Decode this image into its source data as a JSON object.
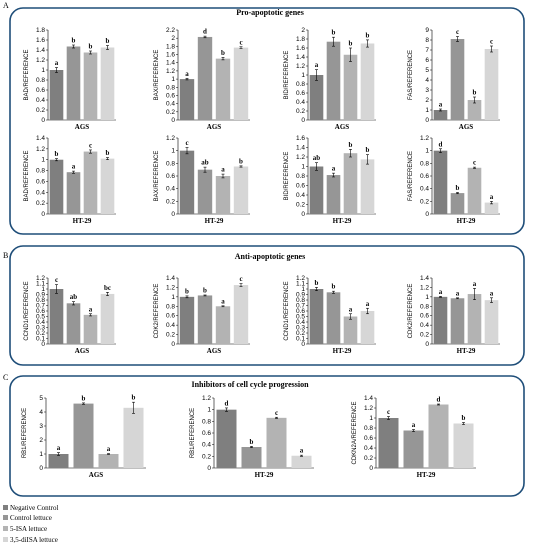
{
  "panels": [
    {
      "letter": "A",
      "title": "Pro-apoptotic genes"
    },
    {
      "letter": "B",
      "title": "Anti-apoptotic genes"
    },
    {
      "letter": "C",
      "title": "Inhibitors of cell cycle progression"
    }
  ],
  "legend": [
    {
      "label": "Negative Control",
      "color": "#7f7f7f"
    },
    {
      "label": "Control lettuce",
      "color": "#969696"
    },
    {
      "label": "5-ISA lettuce",
      "color": "#b3b3b3"
    },
    {
      "label": "3,5-diISA lettuce",
      "color": "#d6d6d6"
    }
  ],
  "colors": [
    "#7f7f7f",
    "#969696",
    "#b3b3b3",
    "#d6d6d6"
  ],
  "chart_data": [
    {
      "type": "bar",
      "panel": "A",
      "xlabel": "AGS",
      "ylabel": "BAD/REFERENCE",
      "ylim": [
        0,
        1.8
      ],
      "ticks": [
        "0",
        "0.2",
        "0.4",
        "0.6",
        "0.8",
        "1",
        "1.2",
        "1.4",
        "1.6",
        "1.8"
      ],
      "values": [
        1.0,
        1.47,
        1.35,
        1.45
      ],
      "errors": [
        0.05,
        0.03,
        0.03,
        0.04
      ],
      "labels": [
        "a",
        "b",
        "b",
        "b"
      ]
    },
    {
      "type": "bar",
      "panel": "A",
      "xlabel": "AGS",
      "ylabel": "BAX/REFERENCE",
      "ylim": [
        0,
        2.2
      ],
      "ticks": [
        "0",
        "0.2",
        "0.4",
        "0.6",
        "0.8",
        "1",
        "1.2",
        "1.4",
        "1.6",
        "1.8",
        "2",
        "2.2"
      ],
      "values": [
        1.0,
        2.03,
        1.5,
        1.77
      ],
      "errors": [
        0.02,
        0.02,
        0.03,
        0.02
      ],
      "labels": [
        "a",
        "d",
        "b",
        "c"
      ]
    },
    {
      "type": "bar",
      "panel": "A",
      "xlabel": "AGS",
      "ylabel": "BID/REFERENCE",
      "ylim": [
        0,
        2
      ],
      "ticks": [
        "0",
        "0.2",
        "0.4",
        "0.6",
        "0.8",
        "1",
        "1.2",
        "1.4",
        "1.6",
        "1.8",
        "2"
      ],
      "values": [
        1.0,
        1.74,
        1.45,
        1.7
      ],
      "errors": [
        0.12,
        0.1,
        0.15,
        0.08
      ],
      "labels": [
        "a",
        "b",
        "b",
        "b"
      ]
    },
    {
      "type": "bar",
      "panel": "A",
      "xlabel": "AGS",
      "ylabel": "FAS/REFERENCE",
      "ylim": [
        0,
        9
      ],
      "ticks": [
        "0",
        "1",
        "2",
        "3",
        "4",
        "5",
        "6",
        "7",
        "8",
        "9"
      ],
      "values": [
        1.0,
        8.1,
        2.0,
        7.1
      ],
      "errors": [
        0.1,
        0.25,
        0.3,
        0.3
      ],
      "labels": [
        "a",
        "c",
        "b",
        "c"
      ]
    },
    {
      "type": "bar",
      "panel": "A",
      "xlabel": "HT-29",
      "ylabel": "BAD/REFERENCE",
      "ylim": [
        0,
        1.4
      ],
      "ticks": [
        "0",
        "0.2",
        "0.4",
        "0.6",
        "0.8",
        "1",
        "1.2",
        "1.4"
      ],
      "values": [
        1.0,
        0.77,
        1.15,
        1.02
      ],
      "errors": [
        0.02,
        0.02,
        0.03,
        0.02
      ],
      "labels": [
        "b",
        "a",
        "c",
        "b"
      ]
    },
    {
      "type": "bar",
      "panel": "A",
      "xlabel": "HT-29",
      "ylabel": "BAX/REFERENCE",
      "ylim": [
        0,
        1.2
      ],
      "ticks": [
        "0",
        "0.2",
        "0.4",
        "0.6",
        "0.8",
        "1",
        "1.2"
      ],
      "values": [
        1.0,
        0.7,
        0.6,
        0.75
      ],
      "errors": [
        0.05,
        0.04,
        0.03,
        0.01
      ],
      "labels": [
        "c",
        "ab",
        "a",
        "b"
      ]
    },
    {
      "type": "bar",
      "panel": "A",
      "xlabel": "HT-29",
      "ylabel": "BID/REFERENCE",
      "ylim": [
        0,
        1.6
      ],
      "ticks": [
        "0",
        "0.2",
        "0.4",
        "0.6",
        "0.8",
        "1",
        "1.2",
        "1.4",
        "1.6"
      ],
      "values": [
        1.0,
        0.82,
        1.28,
        1.15
      ],
      "errors": [
        0.08,
        0.04,
        0.08,
        0.1
      ],
      "labels": [
        "ab",
        "a",
        "b",
        "b"
      ]
    },
    {
      "type": "bar",
      "panel": "A",
      "xlabel": "HT-29",
      "ylabel": "FAS/REFERENCE",
      "ylim": [
        0,
        1.2
      ],
      "ticks": [
        "0",
        "0.2",
        "0.4",
        "0.6",
        "0.8",
        "1",
        "1.2"
      ],
      "values": [
        1.0,
        0.33,
        0.73,
        0.18
      ],
      "errors": [
        0.03,
        0.01,
        0.01,
        0.02
      ],
      "labels": [
        "d",
        "b",
        "c",
        "a"
      ]
    },
    {
      "type": "bar",
      "panel": "B",
      "xlabel": "AGS",
      "ylabel": "CCND1/REFERENCE",
      "ylim": [
        0,
        1.2
      ],
      "ticks": [
        "0",
        "0.1",
        "0.2",
        "0.3",
        "0.4",
        "0.5",
        "0.6",
        "0.7",
        "0.8",
        "0.9",
        "1",
        "1.1",
        "1.2"
      ],
      "values": [
        1.0,
        0.74,
        0.53,
        0.91
      ],
      "errors": [
        0.08,
        0.03,
        0.02,
        0.03
      ],
      "labels": [
        "c",
        "ab",
        "a",
        "bc"
      ]
    },
    {
      "type": "bar",
      "panel": "B",
      "xlabel": "AGS",
      "ylabel": "CDK2/REFERENCE",
      "ylim": [
        0,
        1.4
      ],
      "ticks": [
        "0",
        "0.2",
        "0.4",
        "0.6",
        "0.8",
        "1",
        "1.2",
        "1.4"
      ],
      "values": [
        1.0,
        1.03,
        0.8,
        1.25
      ],
      "errors": [
        0.02,
        0.01,
        0.01,
        0.03
      ],
      "labels": [
        "b",
        "b",
        "a",
        "c"
      ]
    },
    {
      "type": "bar",
      "panel": "B",
      "xlabel": "HT-29",
      "ylabel": "CCND1/REFERENCE",
      "ylim": [
        0,
        1.2
      ],
      "ticks": [
        "0",
        "0.1",
        "0.2",
        "0.3",
        "0.4",
        "0.5",
        "0.6",
        "0.7",
        "0.8",
        "0.9",
        "1",
        "1.1",
        "1.2"
      ],
      "values": [
        1.0,
        0.94,
        0.5,
        0.6
      ],
      "errors": [
        0.03,
        0.02,
        0.05,
        0.05
      ],
      "labels": [
        "b",
        "b",
        "a",
        "a"
      ]
    },
    {
      "type": "bar",
      "panel": "B",
      "xlabel": "HT-29",
      "ylabel": "CDK2/REFERENCE",
      "ylim": [
        0,
        1.4
      ],
      "ticks": [
        "0",
        "0.2",
        "0.4",
        "0.6",
        "0.8",
        "1",
        "1.2",
        "1.4"
      ],
      "values": [
        1.0,
        0.97,
        1.06,
        0.93
      ],
      "errors": [
        0.01,
        0.01,
        0.12,
        0.05
      ],
      "labels": [
        "a",
        "a",
        "a",
        "a"
      ]
    },
    {
      "type": "bar",
      "panel": "C",
      "xlabel": "AGS",
      "ylabel": "RB1/REFERENCE",
      "ylim": [
        0,
        5
      ],
      "ticks": [
        "0",
        "1",
        "2",
        "3",
        "4",
        "5"
      ],
      "values": [
        1.0,
        4.6,
        1.0,
        4.3
      ],
      "errors": [
        0.1,
        0.05,
        0.03,
        0.4
      ],
      "labels": [
        "a",
        "b",
        "a",
        "b"
      ]
    },
    {
      "type": "bar",
      "panel": "C",
      "xlabel": "HT-29",
      "ylabel": "RB1/REFERENCE",
      "ylim": [
        0,
        1.2
      ],
      "ticks": [
        "0",
        "0.2",
        "0.4",
        "0.6",
        "0.8",
        "1",
        "1.2"
      ],
      "values": [
        1.0,
        0.36,
        0.86,
        0.21
      ],
      "errors": [
        0.03,
        0.01,
        0.01,
        0.01
      ],
      "labels": [
        "d",
        "b",
        "c",
        "a"
      ]
    },
    {
      "type": "bar",
      "panel": "C",
      "xlabel": "HT-29",
      "ylabel": "CDKN2A/REFERENCE",
      "ylim": [
        0,
        1.4
      ],
      "ticks": [
        "0",
        "0.2",
        "0.4",
        "0.6",
        "0.8",
        "1",
        "1.2",
        "1.4"
      ],
      "values": [
        1.0,
        0.75,
        1.27,
        0.89
      ],
      "errors": [
        0.03,
        0.02,
        0.01,
        0.02
      ],
      "labels": [
        "c",
        "a",
        "d",
        "b"
      ]
    }
  ]
}
